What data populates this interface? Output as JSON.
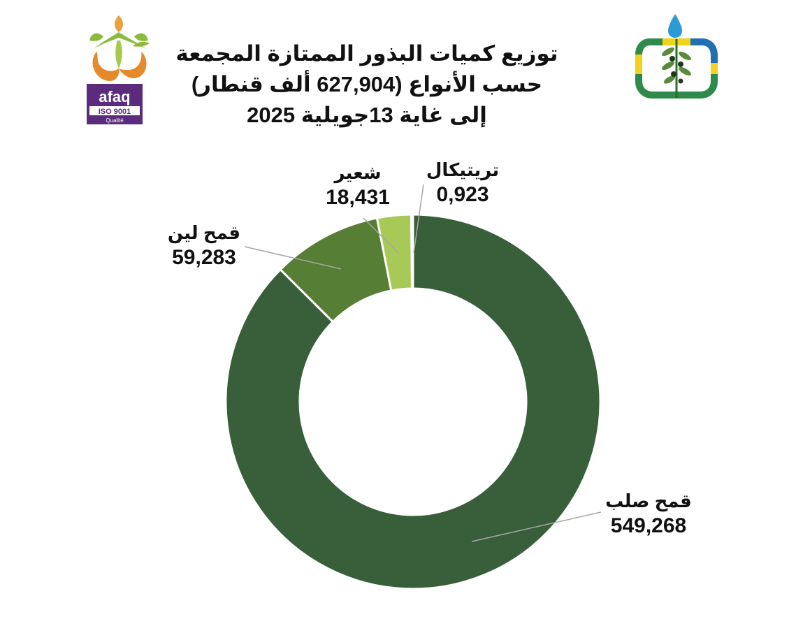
{
  "title": {
    "line1": "توزيع كميات البذور الممتازة المجمعة",
    "line2": "حسب الأنواع  (627,904 ألف قنطار)",
    "line3": "إلى غاية 13جويلية  2025"
  },
  "logos": {
    "left_name": "afaq-iso-9001-logo",
    "left_text_brand": "afaq",
    "left_text_iso": "ISO 9001",
    "left_text_sub": "Qualité",
    "right_name": "olive-branch-water-drop-logo"
  },
  "chart_data": {
    "type": "donut",
    "title": "توزيع كميات البذور الممتازة المجمعة حسب الأنواع (627,904 ألف قنطار) إلى غاية 13جويلية 2025",
    "total": 627.904,
    "start_angle_deg": 0,
    "direction": "clockwise",
    "categories": [
      "قمح صلب",
      "قمح لين",
      "شعير",
      "تريتيكال"
    ],
    "values": [
      549.268,
      59.283,
      18.431,
      0.923
    ],
    "value_labels": [
      "549,268",
      "59,283",
      "18,431",
      "0,923"
    ],
    "colors": [
      "#385f3a",
      "#567e34",
      "#a7c957",
      "#7fa247"
    ],
    "legend": "none",
    "data_labels": "outside-with-leader-lines"
  }
}
